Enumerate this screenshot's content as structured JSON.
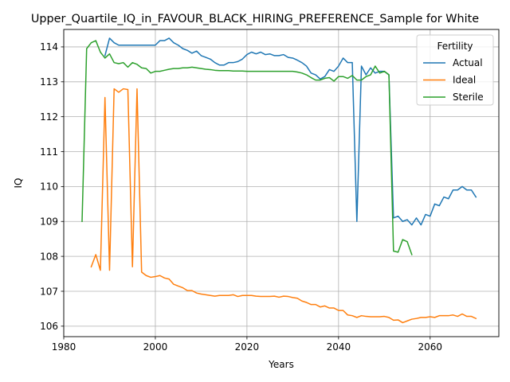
{
  "chart_data": {
    "type": "line",
    "title": "Upper_Quartile_IQ_in_FAVOUR_BLACK_HIRING_PREFERENCE_Sample for White",
    "xlabel": "Years",
    "ylabel": "IQ",
    "xlim": [
      1980,
      2075
    ],
    "ylim": [
      105.7,
      114.5
    ],
    "xticks": [
      1980,
      2000,
      2020,
      2040,
      2060
    ],
    "yticks": [
      106,
      107,
      108,
      109,
      110,
      111,
      112,
      113,
      114
    ],
    "grid": true,
    "legend": {
      "title": "Fertility",
      "position": "top-right"
    },
    "series": [
      {
        "name": "Actual",
        "color": "#1f77b4",
        "points": [
          [
            1989,
            113.75
          ],
          [
            1990,
            114.25
          ],
          [
            1991,
            114.12
          ],
          [
            1992,
            114.05
          ],
          [
            1993,
            114.05
          ],
          [
            1994,
            114.05
          ],
          [
            1995,
            114.05
          ],
          [
            1996,
            114.05
          ],
          [
            1997,
            114.05
          ],
          [
            1998,
            114.05
          ],
          [
            1999,
            114.05
          ],
          [
            2000,
            114.05
          ],
          [
            2001,
            114.18
          ],
          [
            2002,
            114.18
          ],
          [
            2003,
            114.25
          ],
          [
            2004,
            114.12
          ],
          [
            2005,
            114.05
          ],
          [
            2006,
            113.95
          ],
          [
            2007,
            113.9
          ],
          [
            2008,
            113.82
          ],
          [
            2009,
            113.88
          ],
          [
            2010,
            113.75
          ],
          [
            2011,
            113.7
          ],
          [
            2012,
            113.65
          ],
          [
            2013,
            113.55
          ],
          [
            2014,
            113.48
          ],
          [
            2015,
            113.48
          ],
          [
            2016,
            113.55
          ],
          [
            2017,
            113.55
          ],
          [
            2018,
            113.58
          ],
          [
            2019,
            113.65
          ],
          [
            2020,
            113.78
          ],
          [
            2021,
            113.85
          ],
          [
            2022,
            113.8
          ],
          [
            2023,
            113.85
          ],
          [
            2024,
            113.78
          ],
          [
            2025,
            113.8
          ],
          [
            2026,
            113.75
          ],
          [
            2027,
            113.75
          ],
          [
            2028,
            113.78
          ],
          [
            2029,
            113.7
          ],
          [
            2030,
            113.68
          ],
          [
            2031,
            113.62
          ],
          [
            2032,
            113.55
          ],
          [
            2033,
            113.45
          ],
          [
            2034,
            113.25
          ],
          [
            2035,
            113.2
          ],
          [
            2036,
            113.08
          ],
          [
            2037,
            113.15
          ],
          [
            2038,
            113.35
          ],
          [
            2039,
            113.3
          ],
          [
            2040,
            113.45
          ],
          [
            2041,
            113.68
          ],
          [
            2042,
            113.55
          ],
          [
            2043,
            113.55
          ],
          [
            2044,
            109.0
          ],
          [
            2045,
            113.45
          ],
          [
            2046,
            113.2
          ],
          [
            2047,
            113.4
          ],
          [
            2048,
            113.25
          ],
          [
            2049,
            113.3
          ],
          [
            2050,
            113.3
          ],
          [
            2051,
            113.2
          ],
          [
            2052,
            109.1
          ],
          [
            2053,
            109.15
          ],
          [
            2054,
            109.0
          ],
          [
            2055,
            109.05
          ],
          [
            2056,
            108.9
          ],
          [
            2057,
            109.1
          ],
          [
            2058,
            108.9
          ],
          [
            2059,
            109.2
          ],
          [
            2060,
            109.15
          ],
          [
            2061,
            109.5
          ],
          [
            2062,
            109.45
          ],
          [
            2063,
            109.7
          ],
          [
            2064,
            109.65
          ],
          [
            2065,
            109.9
          ],
          [
            2066,
            109.9
          ],
          [
            2067,
            110.0
          ],
          [
            2068,
            109.9
          ],
          [
            2069,
            109.9
          ],
          [
            2070,
            109.7
          ]
        ]
      },
      {
        "name": "Ideal",
        "color": "#ff7f0e",
        "points": [
          [
            1986,
            107.7
          ],
          [
            1987,
            108.05
          ],
          [
            1988,
            107.6
          ],
          [
            1989,
            112.55
          ],
          [
            1990,
            107.6
          ],
          [
            1991,
            112.8
          ],
          [
            1992,
            112.7
          ],
          [
            1993,
            112.8
          ],
          [
            1994,
            112.78
          ],
          [
            1995,
            107.7
          ],
          [
            1996,
            112.8
          ],
          [
            1997,
            107.55
          ],
          [
            1998,
            107.45
          ],
          [
            1999,
            107.4
          ],
          [
            2000,
            107.42
          ],
          [
            2001,
            107.45
          ],
          [
            2002,
            107.38
          ],
          [
            2003,
            107.35
          ],
          [
            2004,
            107.2
          ],
          [
            2005,
            107.15
          ],
          [
            2006,
            107.1
          ],
          [
            2007,
            107.02
          ],
          [
            2008,
            107.02
          ],
          [
            2009,
            106.95
          ],
          [
            2010,
            106.92
          ],
          [
            2011,
            106.9
          ],
          [
            2012,
            106.88
          ],
          [
            2013,
            106.86
          ],
          [
            2014,
            106.88
          ],
          [
            2015,
            106.88
          ],
          [
            2016,
            106.88
          ],
          [
            2017,
            106.9
          ],
          [
            2018,
            106.85
          ],
          [
            2019,
            106.88
          ],
          [
            2020,
            106.88
          ],
          [
            2021,
            106.88
          ],
          [
            2022,
            106.86
          ],
          [
            2023,
            106.85
          ],
          [
            2024,
            106.85
          ],
          [
            2025,
            106.85
          ],
          [
            2026,
            106.86
          ],
          [
            2027,
            106.83
          ],
          [
            2028,
            106.86
          ],
          [
            2029,
            106.85
          ],
          [
            2030,
            106.82
          ],
          [
            2031,
            106.8
          ],
          [
            2032,
            106.72
          ],
          [
            2033,
            106.68
          ],
          [
            2034,
            106.62
          ],
          [
            2035,
            106.62
          ],
          [
            2036,
            106.55
          ],
          [
            2037,
            106.58
          ],
          [
            2038,
            106.52
          ],
          [
            2039,
            106.52
          ],
          [
            2040,
            106.45
          ],
          [
            2041,
            106.45
          ],
          [
            2042,
            106.32
          ],
          [
            2043,
            106.3
          ],
          [
            2044,
            106.25
          ],
          [
            2045,
            106.3
          ],
          [
            2046,
            106.28
          ],
          [
            2047,
            106.27
          ],
          [
            2048,
            106.27
          ],
          [
            2049,
            106.27
          ],
          [
            2050,
            106.28
          ],
          [
            2051,
            106.25
          ],
          [
            2052,
            106.17
          ],
          [
            2053,
            106.18
          ],
          [
            2054,
            106.1
          ],
          [
            2055,
            106.15
          ],
          [
            2056,
            106.2
          ],
          [
            2057,
            106.22
          ],
          [
            2058,
            106.25
          ],
          [
            2059,
            106.25
          ],
          [
            2060,
            106.27
          ],
          [
            2061,
            106.25
          ],
          [
            2062,
            106.3
          ],
          [
            2063,
            106.3
          ],
          [
            2064,
            106.3
          ],
          [
            2065,
            106.32
          ],
          [
            2066,
            106.28
          ],
          [
            2067,
            106.35
          ],
          [
            2068,
            106.28
          ],
          [
            2069,
            106.28
          ],
          [
            2070,
            106.22
          ]
        ]
      },
      {
        "name": "Sterile",
        "color": "#2ca02c",
        "points": [
          [
            1984,
            109.0
          ],
          [
            1985,
            113.95
          ],
          [
            1986,
            114.12
          ],
          [
            1987,
            114.18
          ],
          [
            1988,
            113.85
          ],
          [
            1989,
            113.68
          ],
          [
            1990,
            113.8
          ],
          [
            1991,
            113.55
          ],
          [
            1992,
            113.52
          ],
          [
            1993,
            113.55
          ],
          [
            1994,
            113.42
          ],
          [
            1995,
            113.55
          ],
          [
            1996,
            113.5
          ],
          [
            1997,
            113.4
          ],
          [
            1998,
            113.38
          ],
          [
            1999,
            113.25
          ],
          [
            2000,
            113.3
          ],
          [
            2001,
            113.3
          ],
          [
            2002,
            113.33
          ],
          [
            2003,
            113.36
          ],
          [
            2004,
            113.38
          ],
          [
            2005,
            113.38
          ],
          [
            2006,
            113.4
          ],
          [
            2007,
            113.4
          ],
          [
            2008,
            113.42
          ],
          [
            2009,
            113.4
          ],
          [
            2010,
            113.38
          ],
          [
            2011,
            113.36
          ],
          [
            2012,
            113.35
          ],
          [
            2013,
            113.33
          ],
          [
            2014,
            113.32
          ],
          [
            2015,
            113.32
          ],
          [
            2016,
            113.32
          ],
          [
            2017,
            113.31
          ],
          [
            2018,
            113.31
          ],
          [
            2019,
            113.31
          ],
          [
            2020,
            113.3
          ],
          [
            2021,
            113.3
          ],
          [
            2022,
            113.3
          ],
          [
            2023,
            113.3
          ],
          [
            2024,
            113.3
          ],
          [
            2025,
            113.3
          ],
          [
            2026,
            113.3
          ],
          [
            2027,
            113.3
          ],
          [
            2028,
            113.3
          ],
          [
            2029,
            113.3
          ],
          [
            2030,
            113.3
          ],
          [
            2031,
            113.28
          ],
          [
            2032,
            113.25
          ],
          [
            2033,
            113.2
          ],
          [
            2034,
            113.12
          ],
          [
            2035,
            113.05
          ],
          [
            2036,
            113.05
          ],
          [
            2037,
            113.1
          ],
          [
            2038,
            113.12
          ],
          [
            2039,
            113.02
          ],
          [
            2040,
            113.15
          ],
          [
            2041,
            113.15
          ],
          [
            2042,
            113.1
          ],
          [
            2043,
            113.18
          ],
          [
            2044,
            113.05
          ],
          [
            2045,
            113.05
          ],
          [
            2046,
            113.15
          ],
          [
            2047,
            113.2
          ],
          [
            2048,
            113.45
          ],
          [
            2049,
            113.25
          ],
          [
            2050,
            113.3
          ],
          [
            2051,
            113.2
          ],
          [
            2052,
            108.15
          ],
          [
            2053,
            108.12
          ],
          [
            2054,
            108.48
          ],
          [
            2055,
            108.42
          ],
          [
            2056,
            108.05
          ]
        ]
      }
    ]
  }
}
